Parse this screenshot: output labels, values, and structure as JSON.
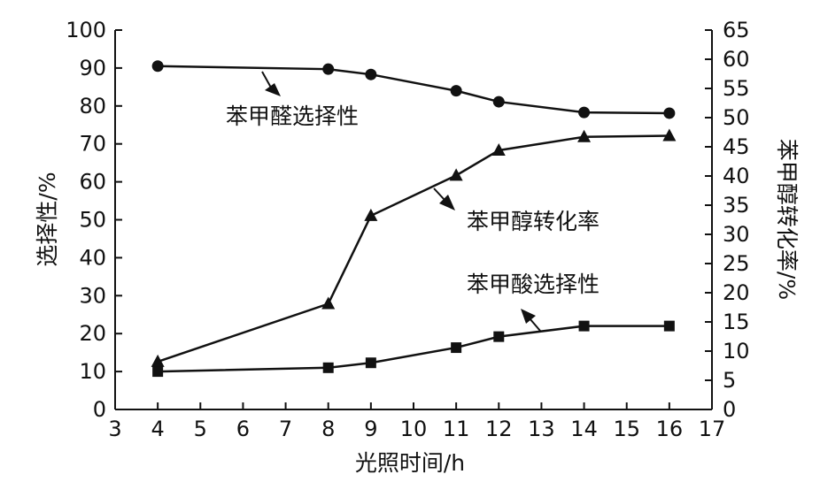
{
  "chart_data": {
    "type": "line",
    "xlabel": "光照时间/h",
    "ylabel_left": "选择性/%",
    "ylabel_right": "苯甲醇转化率/%",
    "xlim": [
      3,
      17
    ],
    "xticks": [
      3,
      4,
      5,
      6,
      7,
      8,
      9,
      10,
      11,
      12,
      13,
      14,
      15,
      16,
      17
    ],
    "ylim_left": [
      0,
      100
    ],
    "yticks_left": [
      0,
      10,
      20,
      30,
      40,
      50,
      60,
      70,
      80,
      90,
      100
    ],
    "ylim_right": [
      0,
      65
    ],
    "yticks_right": [
      0,
      5,
      10,
      15,
      20,
      25,
      30,
      35,
      40,
      45,
      50,
      55,
      60,
      65
    ],
    "grid": false,
    "legend": "none",
    "series": [
      {
        "name": "苯甲醛选择性",
        "axis": "left",
        "marker": "circle",
        "x": [
          4,
          8,
          9,
          11,
          12,
          14,
          16
        ],
        "y": [
          90.5,
          89.7,
          88.3,
          84.0,
          81.1,
          78.3,
          78.1
        ]
      },
      {
        "name": "苯甲醇转化率",
        "axis": "right",
        "marker": "triangle",
        "x": [
          4,
          8,
          9,
          11,
          12,
          14,
          16
        ],
        "y": [
          8.2,
          18.1,
          33.2,
          40.1,
          44.4,
          46.7,
          46.9
        ]
      },
      {
        "name": "苯甲酸选择性",
        "axis": "left",
        "marker": "square",
        "x": [
          4,
          8,
          9,
          11,
          12,
          14,
          16
        ],
        "y": [
          10.0,
          11.0,
          12.3,
          16.3,
          19.2,
          22.0,
          22.0
        ]
      }
    ]
  },
  "annotations": {
    "benzaldehyde": "苯甲醛选择性",
    "conversion": "苯甲醇转化率",
    "benzoic": "苯甲酸选择性"
  }
}
